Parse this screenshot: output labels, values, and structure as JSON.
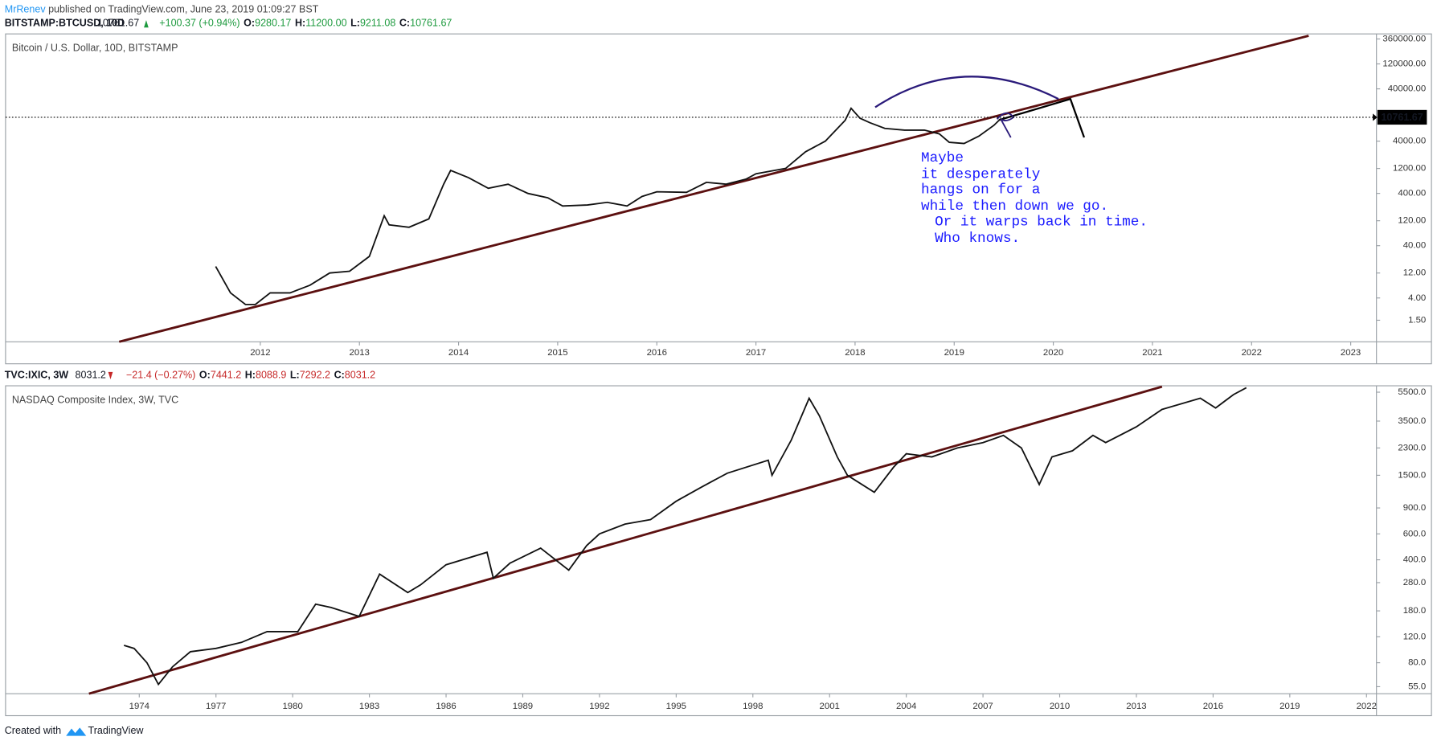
{
  "header": {
    "author": "MrRenev",
    "published": " published on TradingView.com, June 23, 2019 01:09:27 BST"
  },
  "footer": {
    "created": "Created with",
    "brand": "TradingView"
  },
  "annotation": [
    "Maybe",
    "it desperately",
    "hangs on for a",
    "while then down we go.",
    "Or it warps back in time.",
    "Who knows."
  ],
  "chart_data": [
    {
      "type": "line",
      "symbol": "BITSTAMP:BTCUSD, 10D",
      "last": "10761.67",
      "change": "+100.37 (+0.94%)",
      "ohlc": [
        {
          "label": "O:",
          "value": "9280.17"
        },
        {
          "label": "H:",
          "value": "11200.00"
        },
        {
          "label": "L:",
          "value": "9211.08"
        },
        {
          "label": "C:",
          "value": "10761.67"
        }
      ],
      "title": "Bitcoin / U.S. Dollar, 10D, BITSTAMP",
      "log_scale": true,
      "x": [
        2011.55,
        2011.7,
        2011.85,
        2011.95,
        2012.1,
        2012.3,
        2012.5,
        2012.7,
        2012.9,
        2013.1,
        2013.25,
        2013.3,
        2013.5,
        2013.7,
        2013.85,
        2013.92,
        2014.1,
        2014.3,
        2014.5,
        2014.7,
        2014.9,
        2015.05,
        2015.3,
        2015.5,
        2015.7,
        2015.85,
        2016.0,
        2016.3,
        2016.5,
        2016.7,
        2016.9,
        2017.0,
        2017.3,
        2017.5,
        2017.7,
        2017.9,
        2017.96,
        2018.05,
        2018.15,
        2018.3,
        2018.5,
        2018.7,
        2018.85,
        2018.95,
        2019.1,
        2019.25,
        2019.4,
        2019.47
      ],
      "series": [
        {
          "name": "BTCUSD",
          "color": "#111111",
          "values": [
            16,
            5,
            3,
            3,
            5,
            5,
            7,
            12,
            13,
            25,
            150,
            100,
            90,
            130,
            600,
            1100,
            800,
            500,
            600,
            400,
            330,
            230,
            240,
            270,
            230,
            350,
            430,
            420,
            650,
            600,
            750,
            950,
            1200,
            2500,
            4000,
            10000,
            17000,
            11000,
            9000,
            7000,
            6500,
            6500,
            5500,
            3800,
            3600,
            5000,
            8000,
            10761.67
          ]
        }
      ],
      "xlim": [
        2009.43,
        2023.26
      ],
      "xticks": [
        2012,
        2013,
        2014,
        2015,
        2016,
        2017,
        2018,
        2019,
        2020,
        2021,
        2022,
        2023
      ],
      "ylim": [
        0.58,
        450000
      ],
      "yticks": [
        {
          "value": 360000,
          "label": "360000.00"
        },
        {
          "value": 120000,
          "label": "120000.00"
        },
        {
          "value": 40000,
          "label": "40000.00"
        },
        {
          "value": 4000,
          "label": "4000.00"
        },
        {
          "value": 1200,
          "label": "1200.00"
        },
        {
          "value": 400,
          "label": "400.00"
        },
        {
          "value": 120,
          "label": "120.00"
        },
        {
          "value": 40,
          "label": "40.00"
        },
        {
          "value": 12,
          "label": "12.00"
        },
        {
          "value": 4,
          "label": "4.00"
        },
        {
          "value": 1.5,
          "label": "1.50"
        }
      ]
    },
    {
      "type": "line",
      "symbol": "TVC:IXIC, 3W",
      "last": "8031.2",
      "change": "−21.4 (−0.27%)",
      "ohlc": [
        {
          "label": "O:",
          "value": "7441.2"
        },
        {
          "label": "H:",
          "value": "8088.9"
        },
        {
          "label": "L:",
          "value": "7292.2"
        },
        {
          "label": "C:",
          "value": "8031.2"
        }
      ],
      "title": "NASDAQ Composite Index, 3W, TVC",
      "log_scale": true,
      "x": [
        1973.4,
        1973.8,
        1974.3,
        1974.75,
        1975.3,
        1976,
        1977,
        1978,
        1979,
        1980.2,
        1980.9,
        1981.5,
        1982.6,
        1983.4,
        1984.5,
        1985,
        1986,
        1987.6,
        1987.85,
        1988.5,
        1989.7,
        1990.8,
        1991.5,
        1992,
        1993,
        1994,
        1995,
        1996,
        1997,
        1998.6,
        1998.75,
        1999.5,
        2000.2,
        2000.6,
        2001.3,
        2001.7,
        2002.75,
        2003.5,
        2004,
        2005,
        2006,
        2007,
        2007.8,
        2008.5,
        2009.2,
        2009.7,
        2010.5,
        2011.3,
        2011.8,
        2013,
        2014,
        2015.5,
        2016.1,
        2016.8,
        2017.3
      ],
      "series": [
        {
          "name": "IXIC",
          "color": "#111111",
          "values": [
            105,
            100,
            80,
            57,
            75,
            95,
            100,
            110,
            130,
            130,
            200,
            190,
            165,
            320,
            240,
            270,
            370,
            450,
            300,
            380,
            480,
            340,
            500,
            600,
            700,
            750,
            1000,
            1250,
            1550,
            1900,
            1500,
            2600,
            5000,
            3800,
            2000,
            1500,
            1150,
            1700,
            2100,
            2000,
            2300,
            2500,
            2800,
            2300,
            1300,
            2000,
            2200,
            2800,
            2500,
            3200,
            4200,
            5000,
            4300,
            5300,
            5900
          ]
        }
      ],
      "xlim": [
        1968.77,
        2022.39
      ],
      "xticks": [
        1974,
        1977,
        1980,
        1983,
        1986,
        1989,
        1992,
        1995,
        1998,
        2001,
        2004,
        2007,
        2010,
        2013,
        2016,
        2019,
        2022
      ],
      "ylim": [
        49.3,
        6080
      ],
      "yticks": [
        {
          "value": 5500,
          "label": "5500.0"
        },
        {
          "value": 3500,
          "label": "3500.0"
        },
        {
          "value": 2300,
          "label": "2300.0"
        },
        {
          "value": 1500,
          "label": "1500.0"
        },
        {
          "value": 900,
          "label": "900.0"
        },
        {
          "value": 600,
          "label": "600.0"
        },
        {
          "value": 400,
          "label": "400.0"
        },
        {
          "value": 280,
          "label": "280.0"
        },
        {
          "value": 180,
          "label": "180.0"
        },
        {
          "value": 120,
          "label": "120.0"
        },
        {
          "value": 80,
          "label": "80.0"
        },
        {
          "value": 55,
          "label": "55.0"
        }
      ]
    }
  ]
}
